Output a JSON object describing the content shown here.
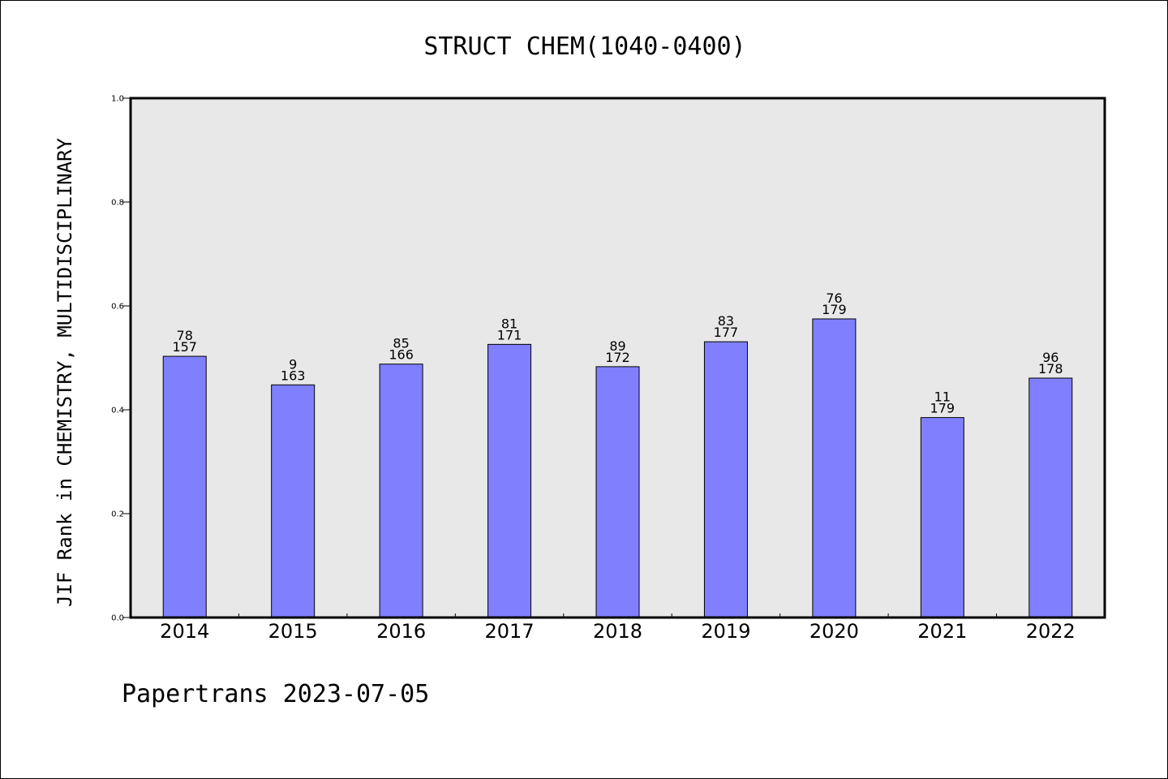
{
  "chart_data": {
    "type": "bar",
    "title": "STRUCT CHEM(1040-0400)",
    "ylabel": "JIF Rank in CHEMISTRY, MULTIDISCIPLINARY",
    "xlabel": "",
    "ylim": [
      0.0,
      1.0
    ],
    "yticks": [
      "0.0",
      "0.2",
      "0.4",
      "0.6",
      "0.8",
      "1.0"
    ],
    "grid": false,
    "bar_color": "#8080ff",
    "plot_background": "#e8e8e8",
    "categories": [
      "2014",
      "2015",
      "2016",
      "2017",
      "2018",
      "2019",
      "2020",
      "2021",
      "2022"
    ],
    "values": [
      0.503,
      0.448,
      0.488,
      0.526,
      0.483,
      0.531,
      0.575,
      0.385,
      0.461
    ],
    "ranks": [
      "78",
      "9",
      "85",
      "81",
      "89",
      "83",
      "76",
      "11",
      "96"
    ],
    "totals": [
      "157",
      "163",
      "166",
      "171",
      "172",
      "177",
      "179",
      "179",
      "178"
    ]
  },
  "footer": "Papertrans 2023-07-05"
}
